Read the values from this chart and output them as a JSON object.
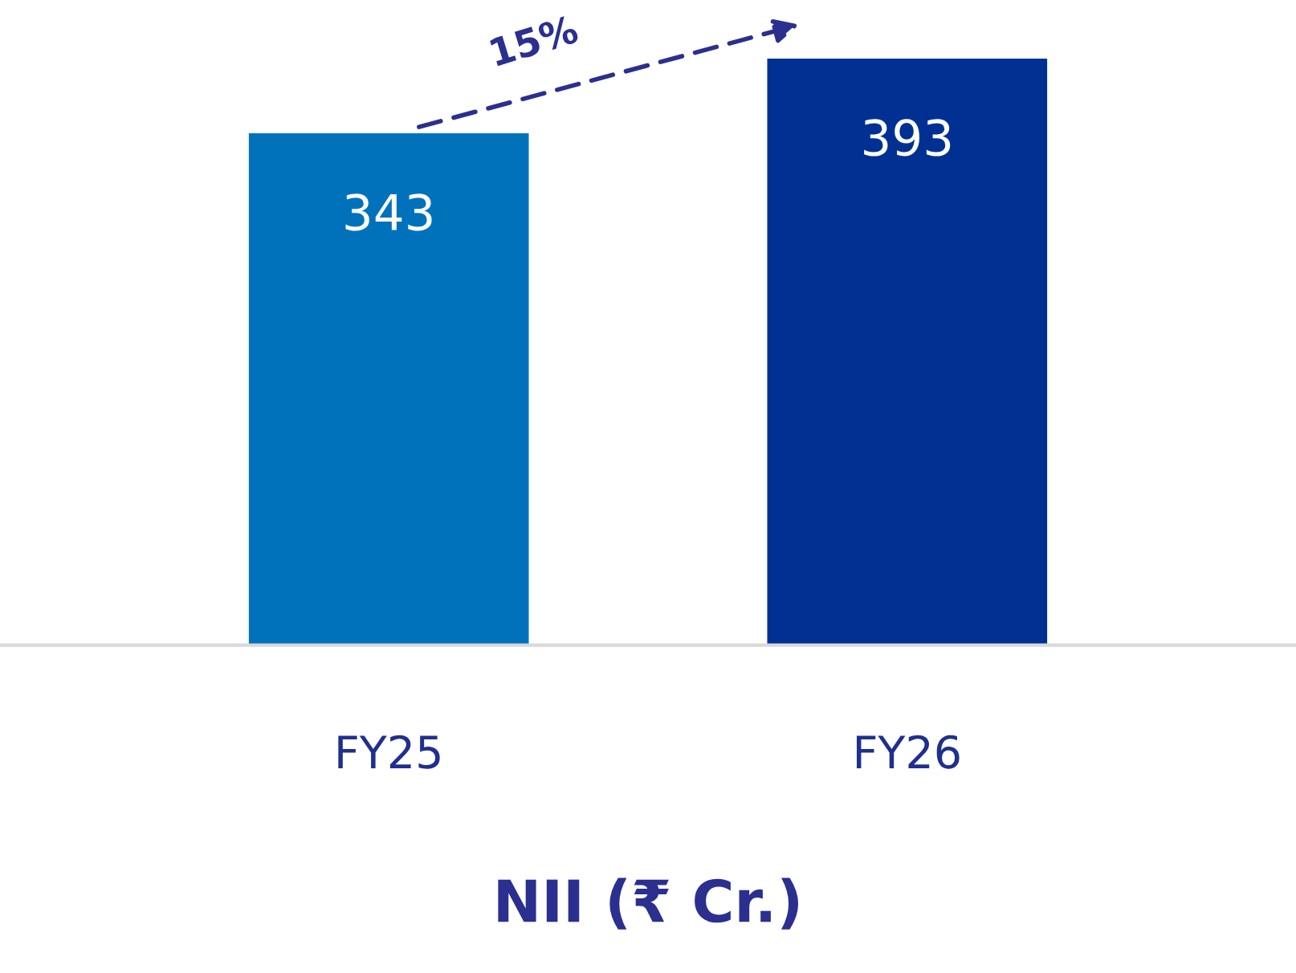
{
  "chart_data": {
    "type": "bar",
    "xlabel": "NII (₹ Cr.)",
    "categories": [
      "FY25",
      "FY26"
    ],
    "values": [
      343,
      393
    ],
    "colors": [
      "#0072bc",
      "#003192"
    ],
    "data_labels": true,
    "grid": false,
    "annotations": [
      "15%"
    ]
  }
}
